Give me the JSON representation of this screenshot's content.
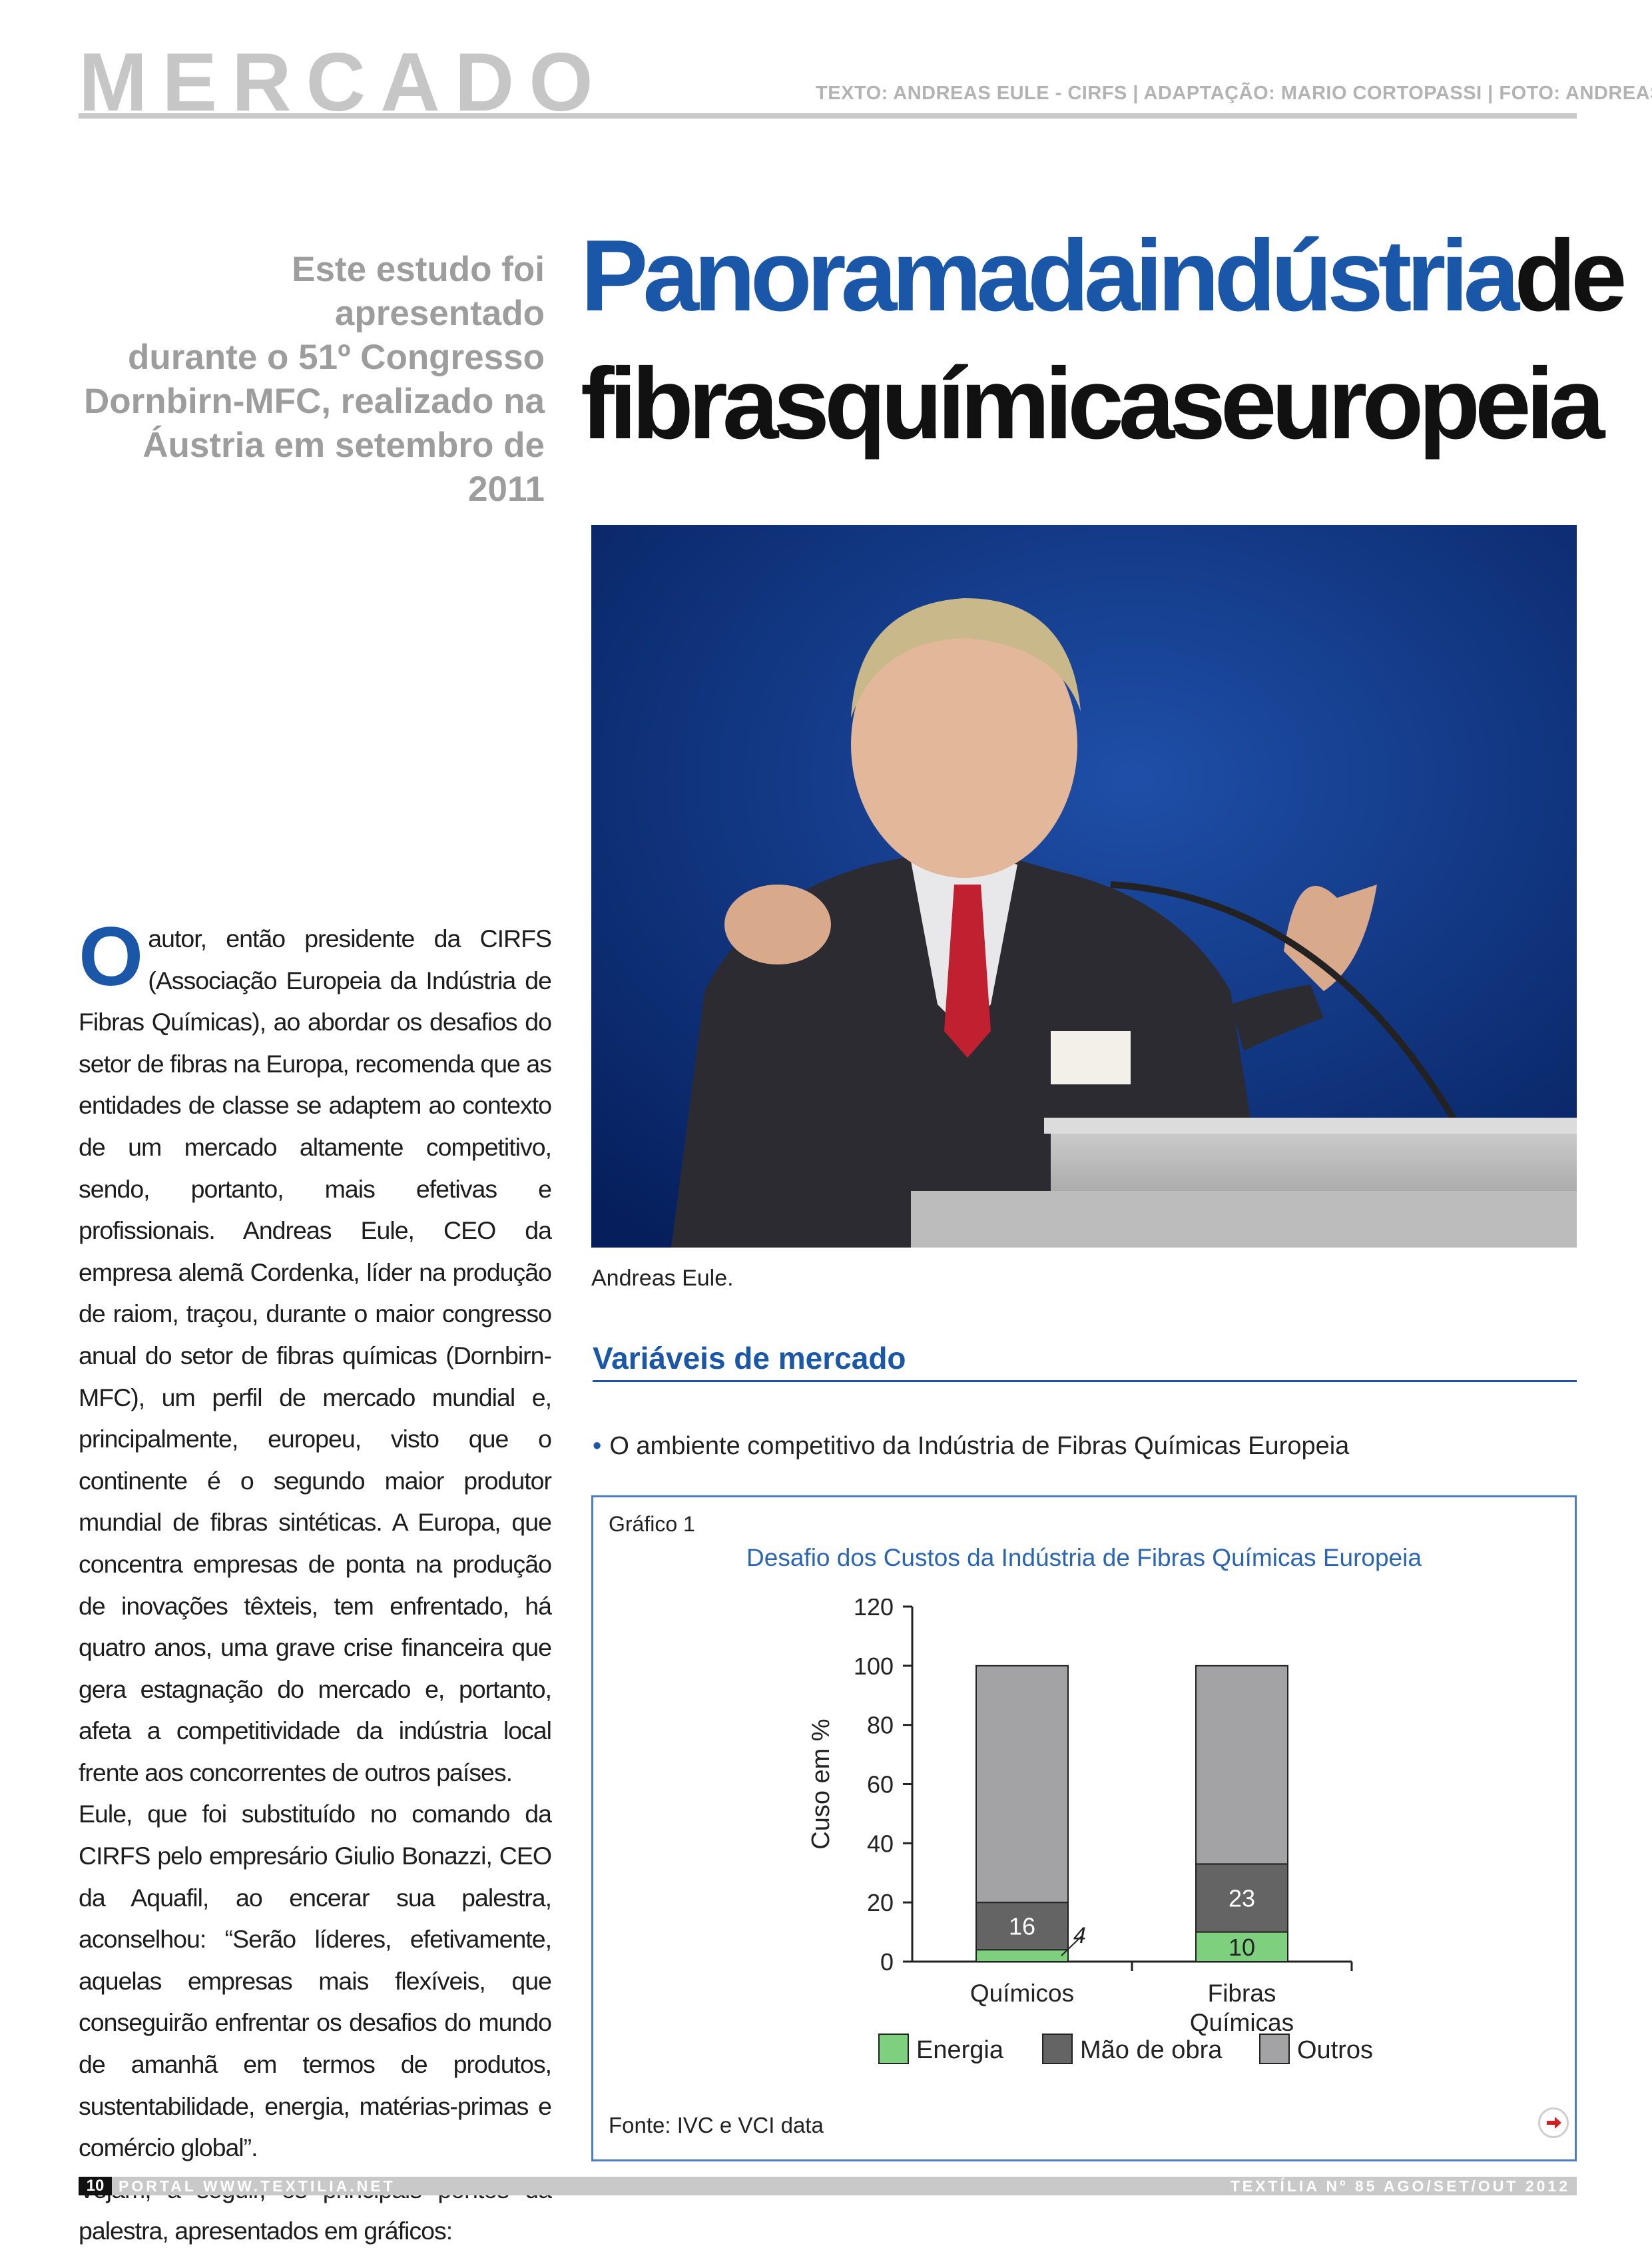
{
  "header": {
    "section": "MERCADO",
    "credits": "TEXTO: ANDREAS EULE - CIRFS | ADAPTAÇÃO: MARIO CORTOPASSI | FOTO: ANDREAS EULE"
  },
  "deck": {
    "line1": "Este estudo foi apresentado",
    "line2": "durante o 51º Congresso",
    "line3": "Dornbirn-MFC, realizado na",
    "line4": "Áustria em setembro de 2011"
  },
  "headline": {
    "part1_blue": "Panoramadaindústria",
    "part1_black": "de",
    "line2": "fibrasquímicaseuropeia"
  },
  "photo": {
    "caption": "Andreas Eule."
  },
  "body": {
    "drop_cap": "O",
    "p1": "autor, então presidente da CIRFS (Associação Europeia da Indústria de Fibras Químicas), ao abordar os desafios do setor de fibras na Europa, recomenda que as entidades de classe se adaptem ao contexto de um mercado altamente competitivo, sendo, portanto, mais efetivas e profissionais. Andreas Eule, CEO da empresa alemã Cordenka, líder na produção de raiom, traçou, durante o maior congresso anual do setor de fibras químicas (Dornbirn-MFC), um perfil de mercado mundial e, principalmente, europeu, visto que o continente é o segundo maior produtor mundial de fibras sintéticas. A Europa, que concentra empresas de ponta na produção de inovações têxteis, tem enfrentado, há quatro anos, uma grave crise financeira que gera estagnação do mercado e, portanto, afeta a competitividade da indústria local frente aos concorrentes de outros países.",
    "p2": "Eule, que foi substituído no comando da CIRFS pelo empresário Giulio Bonazzi, CEO da Aquafil, ao encerar sua palestra, aconselhou: “Serão líderes, efetivamente, aquelas empresas mais flexíveis, que conseguirão enfrentar os desafios do mundo de amanhã em termos de produtos, sustentabilidade, energia, matérias-primas e comércio global”.",
    "p3": "Vejam, a seguir, os principais pontos da palestra, apresentados em gráficos:"
  },
  "subsection": {
    "title": "Variáveis de mercado",
    "bullet": "O ambiente competitivo da Indústria de Fibras Químicas Europeia"
  },
  "chart_box": {
    "label": "Gráfico 1",
    "source": "Fonte: IVC e VCI data",
    "next_icon": "arrow-right-icon"
  },
  "chart_data": {
    "type": "bar",
    "stacked": true,
    "title": "Desafio dos Custos da Indústria de Fibras Químicas Europeia",
    "ylabel": "Cuso em %",
    "xlabel": "",
    "ylim": [
      0,
      120
    ],
    "yticks": [
      0,
      20,
      40,
      60,
      80,
      100,
      120
    ],
    "categories": [
      "Químicos",
      "Fibras\nQuímicas"
    ],
    "series": [
      {
        "name": "Energia",
        "values": [
          4,
          10
        ],
        "color": "#7ed07e",
        "labels": [
          "4",
          "10"
        ]
      },
      {
        "name": "Mão de obra",
        "values": [
          16,
          23
        ],
        "color": "#646464",
        "labels": [
          "16",
          "23"
        ]
      },
      {
        "name": "Outros",
        "values": [
          80,
          67
        ],
        "color": "#a3a3a6",
        "labels": [
          "",
          ""
        ]
      }
    ],
    "legend_position": "bottom",
    "grid": false
  },
  "footer": {
    "page_number": "10",
    "left": "PORTAL WWW.TEXTILIA.NET",
    "right": "TEXTÍLIA Nº 85 AGO/SET/OUT 2012"
  }
}
